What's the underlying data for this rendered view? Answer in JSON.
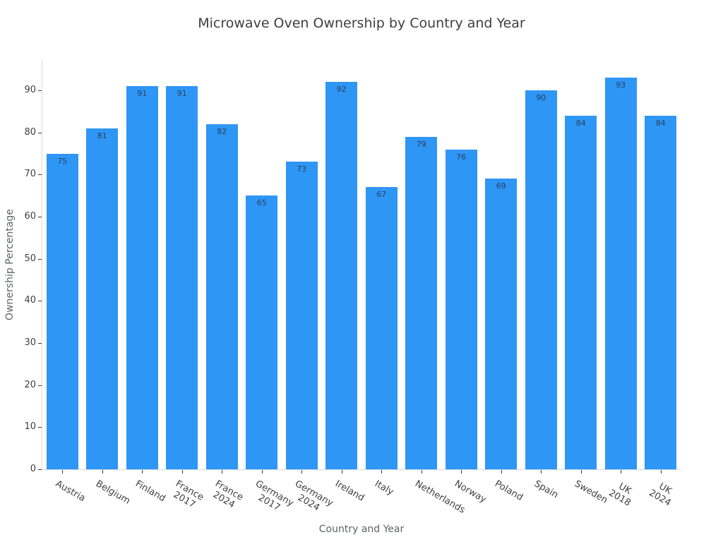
{
  "chart_data": {
    "type": "bar",
    "title": "Microwave Oven Ownership by Country and Year",
    "xlabel": "Country and Year",
    "ylabel": "Ownership Percentage",
    "categories": [
      "Austria",
      "Belgium",
      "Finland",
      "France\n2017",
      "France\n2024",
      "Germany\n2017",
      "Germany\n2024",
      "Ireland",
      "Italy",
      "Netherlands",
      "Norway",
      "Poland",
      "Spain",
      "Sweden",
      "UK\n2018",
      "UK\n2024"
    ],
    "values": [
      75,
      81,
      91,
      91,
      82,
      65,
      73,
      92,
      67,
      79,
      76,
      69,
      90,
      84,
      93,
      84
    ],
    "bar_value_labels": [
      "75",
      "81",
      "91",
      "91",
      "82",
      "65",
      "73",
      "92",
      "67",
      "79",
      "76",
      "69",
      "90",
      "84",
      "93",
      "84"
    ],
    "yticks": [
      0,
      10,
      20,
      30,
      40,
      50,
      60,
      70,
      80,
      90
    ],
    "ylim": [
      0,
      97.2
    ],
    "grid": false,
    "legend": false,
    "bar_gap_fraction": 0.2,
    "x_tick_angle_deg": 30
  },
  "colors": {
    "bar": "#2e96f5",
    "bar_label": "#2a3f5f",
    "axis_line": "#d9d9de",
    "tick_mark": "#3a3a3a",
    "tick_label": "#3f3f3f",
    "axis_title": "#5f6368",
    "title": "#3d3f43",
    "background": "#ffffff"
  }
}
